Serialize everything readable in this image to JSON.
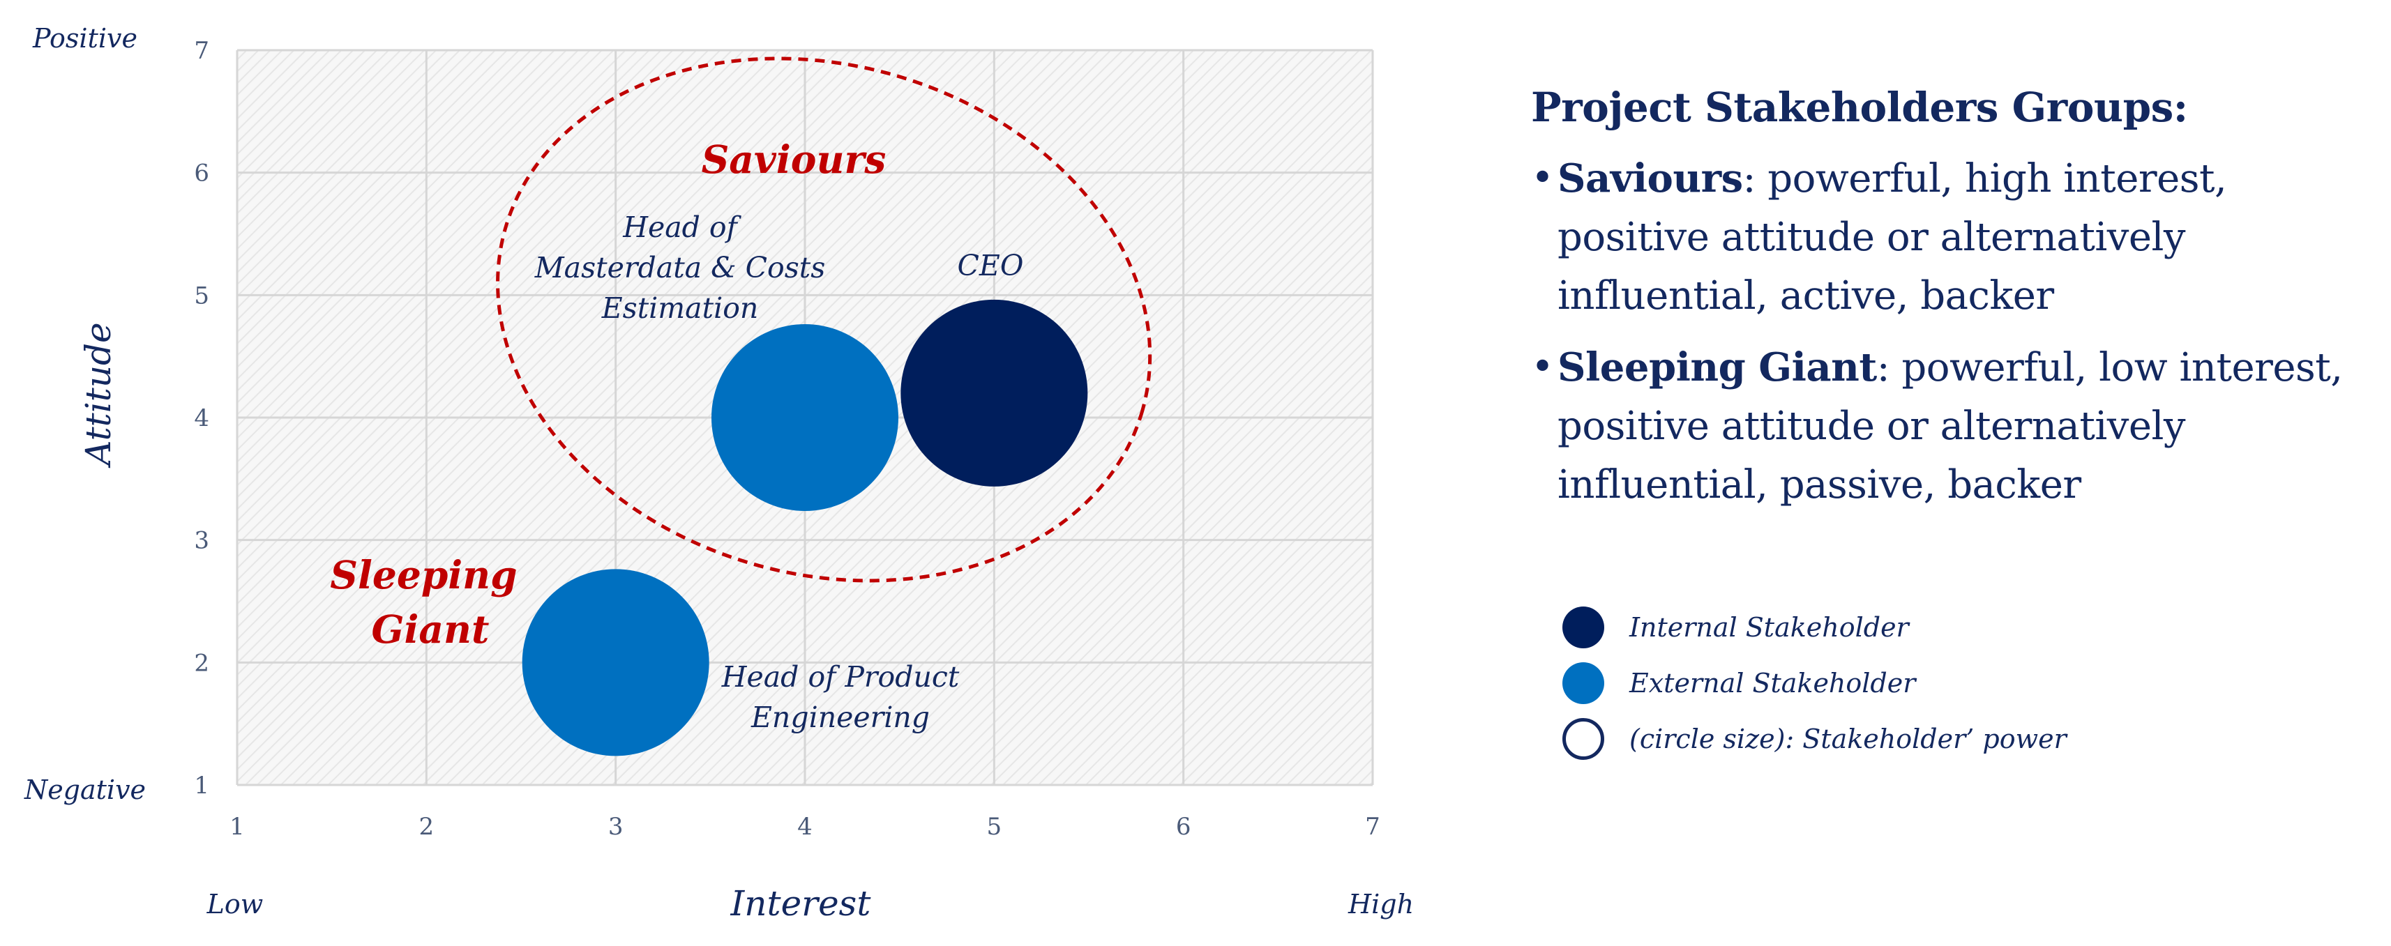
{
  "chart_data": {
    "type": "scatter",
    "subtype": "bubble",
    "xlabel": "Interest",
    "ylabel": "Attitude",
    "xlim": [
      1,
      7
    ],
    "ylim": [
      1,
      7
    ],
    "x_ticks": [
      "1",
      "2",
      "3",
      "4",
      "5",
      "6",
      "7"
    ],
    "y_ticks": [
      "1",
      "2",
      "3",
      "4",
      "5",
      "6",
      "7"
    ],
    "x_low_label": "Low",
    "x_high_label": "High",
    "y_low_label": "Negative",
    "y_high_label": "Positive",
    "grid": true,
    "points": [
      {
        "label": "CEO",
        "x": 5,
        "y": 4.2,
        "category": "Internal Stakeholder",
        "color": "#001e5c"
      },
      {
        "label": "Head of Masterdata & Costs Estimation",
        "label_lines": [
          "Head of",
          "Masterdata & Costs",
          "Estimation"
        ],
        "x": 4,
        "y": 4,
        "category": "External Stakeholder",
        "color": "#0070c0"
      },
      {
        "label": "Head of Product Engineering",
        "label_lines": [
          "Head of Product",
          "Engineering"
        ],
        "x": 3,
        "y": 2,
        "category": "External Stakeholder",
        "color": "#0070c0"
      }
    ],
    "groups": [
      {
        "label": "Saviours",
        "label_lines": [
          "Saviours"
        ],
        "color": "#c00000"
      },
      {
        "label": "Sleeping Giant",
        "label_lines": [
          "Sleeping",
          "Giant"
        ],
        "color": "#c00000"
      }
    ]
  },
  "side": {
    "title": "Project Stakeholders Groups:",
    "groups": [
      {
        "name": "Saviours",
        "lines": [
          ": powerful, high interest,",
          "positive attitude or alternatively",
          "influential, active, backer"
        ]
      },
      {
        "name": "Sleeping Giant",
        "lines": [
          ": powerful, low interest,",
          "positive attitude or alternatively",
          "influential, passive, backer"
        ]
      }
    ]
  },
  "legend": {
    "items": [
      {
        "label": "Internal Stakeholder",
        "color": "#001e5c",
        "style": "filled"
      },
      {
        "label": "External Stakeholder",
        "color": "#0070c0",
        "style": "filled"
      },
      {
        "label": "(circle size): Stakeholder’ power",
        "color": "#13285f",
        "style": "outline"
      }
    ]
  },
  "colors": {
    "accent_red": "#c00000",
    "navy": "#13285f",
    "grid": "#d6d6d6"
  }
}
